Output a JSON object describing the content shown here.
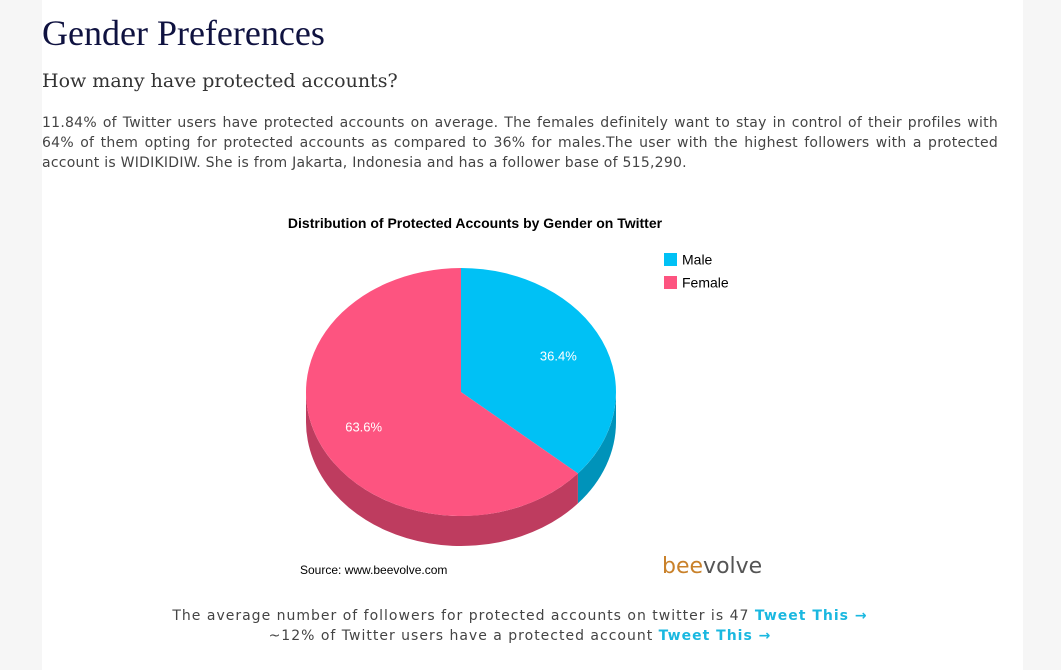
{
  "page": {
    "heading": "Gender Preferences",
    "subheading": "How many have protected accounts?",
    "intro": "11.84% of Twitter users have protected accounts on average. The females definitely want to stay in control of their profiles with 64% of them opting for protected accounts as compared to 36% for males.The user with the highest followers with a protected account is WIDIKIDIW. She is from Jakarta, Indonesia and has a follower base of 515,290."
  },
  "chart_data": {
    "type": "pie",
    "title": "Distribution of Protected Accounts by Gender on Twitter",
    "categories": [
      "Male",
      "Female"
    ],
    "values": [
      36.4,
      63.6
    ],
    "value_labels": [
      "36.4%",
      "63.6%"
    ],
    "colors": [
      "#00c1f5",
      "#fd5480"
    ],
    "side_colors": [
      "#0093ba",
      "#be3c5f"
    ],
    "legend_position": "top-right",
    "three_d": true
  },
  "chart_footer": {
    "source": "Source: www.beevolve.com",
    "brand_prefix": "bee",
    "brand_suffix": "volve",
    "brand_prefix_color": "#c9812a",
    "brand_suffix_color": "#555555"
  },
  "footer": {
    "line1_text": "The average number of followers for protected accounts on twitter is 47",
    "line2_text": "~12% of Twitter users have a protected account",
    "tweet_label": "Tweet This →"
  }
}
